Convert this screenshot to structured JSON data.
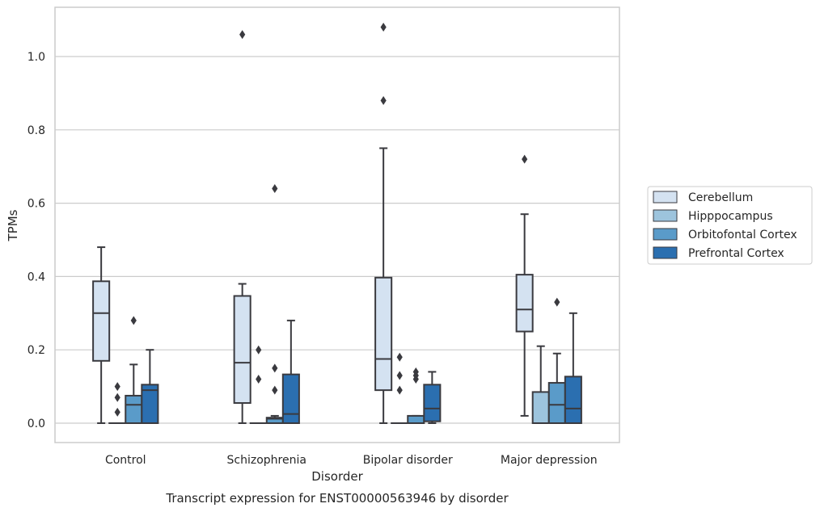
{
  "chart_data": {
    "type": "box",
    "title": "",
    "caption": "Transcript expression for ENST00000563946 by disorder",
    "xlabel": "Disorder",
    "ylabel": "TPMs",
    "ylim": [
      -0.05,
      1.135
    ],
    "yticks": [
      "0.0",
      "0.2",
      "0.4",
      "0.6",
      "0.8",
      "1.0"
    ],
    "ytick_values": [
      0.0,
      0.2,
      0.4,
      0.6,
      0.8,
      1.0
    ],
    "grid": true,
    "legend_position": "right",
    "categories": [
      "Control",
      "Schizophrenia",
      "Bipolar disorder",
      "Major depression"
    ],
    "series": [
      {
        "name": "Cerebellum",
        "color": "#d4e2f1",
        "boxes": [
          {
            "whisker_low": 0.0,
            "q1": 0.17,
            "median": 0.3,
            "q3": 0.387,
            "whisker_high": 0.48,
            "outliers": []
          },
          {
            "whisker_low": 0.0,
            "q1": 0.055,
            "median": 0.165,
            "q3": 0.347,
            "whisker_high": 0.38,
            "outliers": [
              1.06
            ]
          },
          {
            "whisker_low": 0.0,
            "q1": 0.09,
            "median": 0.175,
            "q3": 0.397,
            "whisker_high": 0.75,
            "outliers": [
              0.88,
              1.08
            ]
          },
          {
            "whisker_low": 0.02,
            "q1": 0.25,
            "median": 0.31,
            "q3": 0.405,
            "whisker_high": 0.57,
            "outliers": [
              0.72
            ]
          }
        ]
      },
      {
        "name": "Hipppocampus",
        "color": "#9dc4dd",
        "boxes": [
          {
            "whisker_low": 0.0,
            "q1": 0.0,
            "median": 0.0,
            "q3": 0.0,
            "whisker_high": 0.0,
            "outliers": [
              0.03,
              0.07,
              0.1
            ]
          },
          {
            "whisker_low": 0.0,
            "q1": 0.0,
            "median": 0.0,
            "q3": 0.0,
            "whisker_high": 0.0,
            "outliers": [
              0.12,
              0.2
            ]
          },
          {
            "whisker_low": 0.0,
            "q1": 0.0,
            "median": 0.0,
            "q3": 0.0,
            "whisker_high": 0.0,
            "outliers": [
              0.09,
              0.13,
              0.18
            ]
          },
          {
            "whisker_low": 0.0,
            "q1": 0.0,
            "median": 0.0,
            "q3": 0.085,
            "whisker_high": 0.21,
            "outliers": []
          }
        ]
      },
      {
        "name": "Orbitofontal Cortex",
        "color": "#5a9bc9",
        "boxes": [
          {
            "whisker_low": 0.0,
            "q1": 0.0,
            "median": 0.05,
            "q3": 0.075,
            "whisker_high": 0.16,
            "outliers": [
              0.28
            ]
          },
          {
            "whisker_low": 0.0,
            "q1": 0.0,
            "median": 0.012,
            "q3": 0.015,
            "whisker_high": 0.02,
            "outliers": [
              0.09,
              0.15,
              0.64
            ]
          },
          {
            "whisker_low": 0.0,
            "q1": 0.0,
            "median": 0.0,
            "q3": 0.02,
            "whisker_high": 0.02,
            "outliers": [
              0.12,
              0.13,
              0.14
            ]
          },
          {
            "whisker_low": 0.0,
            "q1": 0.0,
            "median": 0.05,
            "q3": 0.11,
            "whisker_high": 0.19,
            "outliers": [
              0.33
            ]
          }
        ]
      },
      {
        "name": "Prefrontal Cortex",
        "color": "#2b6fb0",
        "boxes": [
          {
            "whisker_low": 0.0,
            "q1": 0.0,
            "median": 0.09,
            "q3": 0.105,
            "whisker_high": 0.2,
            "outliers": []
          },
          {
            "whisker_low": 0.0,
            "q1": 0.0,
            "median": 0.025,
            "q3": 0.133,
            "whisker_high": 0.28,
            "outliers": []
          },
          {
            "whisker_low": 0.0,
            "q1": 0.005,
            "median": 0.04,
            "q3": 0.105,
            "whisker_high": 0.14,
            "outliers": []
          },
          {
            "whisker_low": 0.0,
            "q1": 0.0,
            "median": 0.04,
            "q3": 0.127,
            "whisker_high": 0.3,
            "outliers": []
          }
        ]
      }
    ]
  }
}
